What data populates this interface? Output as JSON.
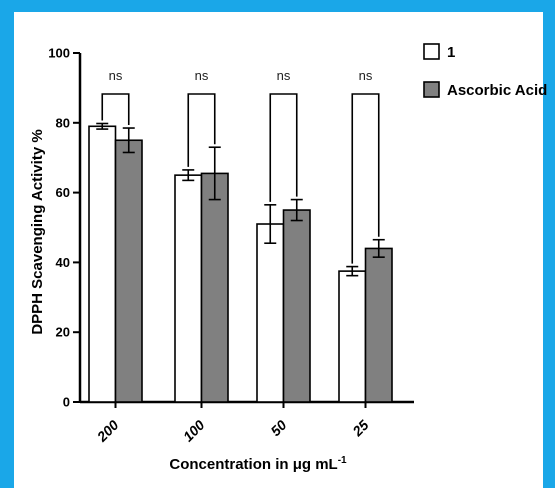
{
  "colors": {
    "background_border": "#1aa7e8",
    "series_1": "#ffffff",
    "series_2": "#808080",
    "stroke": "#000000"
  },
  "chart_data": {
    "type": "bar",
    "title": "",
    "ylabel": "DPPH Scavenging Activity %",
    "xlabel": "Concentration in μg mL",
    "xlabel_superscript": "-1",
    "ylim": [
      0,
      100
    ],
    "yticks": [
      0,
      20,
      40,
      60,
      80,
      100
    ],
    "categories": [
      "200",
      "100",
      "50",
      "25"
    ],
    "series": [
      {
        "name": "1",
        "values": [
          79,
          65,
          51,
          37.5
        ],
        "errors": [
          0.8,
          1.5,
          5.5,
          1.3
        ]
      },
      {
        "name": "Ascorbic Acid",
        "values": [
          75,
          65.5,
          55,
          44
        ],
        "errors": [
          3.5,
          7.5,
          3.0,
          2.5
        ]
      }
    ],
    "significance": [
      "ns",
      "ns",
      "ns",
      "ns"
    ],
    "legend_position": "top-right",
    "grid": false
  }
}
